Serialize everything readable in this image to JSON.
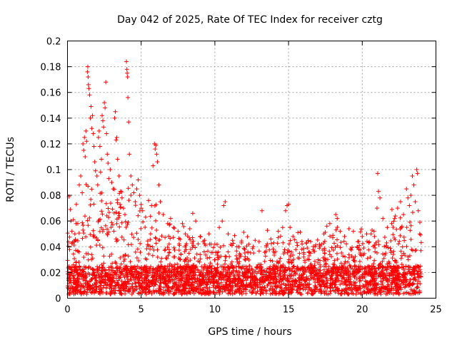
{
  "chart_data": {
    "type": "scatter",
    "title": "Day 042 of 2025, Rate Of TEC Index for receiver cztg",
    "xlabel": "GPS time / hours",
    "ylabel": "ROTI / TECUs",
    "xlim": [
      0,
      25
    ],
    "ylim": [
      0,
      0.2
    ],
    "xticks": [
      0,
      5,
      10,
      15,
      20,
      25
    ],
    "yticks": [
      0,
      0.02,
      0.04,
      0.06,
      0.08,
      0.1,
      0.12,
      0.14,
      0.16,
      0.18,
      0.2
    ],
    "xtick_labels": [
      "0",
      "5",
      "10",
      "15",
      "20",
      "25"
    ],
    "ytick_labels": [
      "0",
      "0.02",
      "0.04",
      "0.06",
      "0.08",
      "0.1",
      "0.12",
      "0.14",
      "0.16",
      "0.18",
      "0.2"
    ],
    "grid": true,
    "marker": "plus",
    "series": [
      {
        "name": "ROTI",
        "color": "#ff0000",
        "points": [
          [
            0.1,
            0.079
          ],
          [
            0.2,
            0.069
          ],
          [
            0.3,
            0.052
          ],
          [
            0.4,
            0.061
          ],
          [
            0.5,
            0.05
          ],
          [
            0.6,
            0.073
          ],
          [
            0.7,
            0.058
          ],
          [
            0.8,
            0.088
          ],
          [
            0.9,
            0.095
          ],
          [
            1.0,
            0.082
          ],
          [
            1.05,
            0.12
          ],
          [
            1.1,
            0.115
          ],
          [
            1.15,
            0.125
          ],
          [
            1.2,
            0.11
          ],
          [
            1.25,
            0.13
          ],
          [
            1.3,
            0.122
          ],
          [
            1.35,
            0.176
          ],
          [
            1.38,
            0.18
          ],
          [
            1.4,
            0.172
          ],
          [
            1.42,
            0.166
          ],
          [
            1.45,
            0.163
          ],
          [
            1.5,
            0.158
          ],
          [
            1.55,
            0.14
          ],
          [
            1.6,
            0.149
          ],
          [
            1.65,
            0.132
          ],
          [
            1.7,
            0.142
          ],
          [
            1.75,
            0.128
          ],
          [
            1.8,
            0.118
          ],
          [
            1.85,
            0.106
          ],
          [
            1.9,
            0.099
          ],
          [
            2.0,
            0.095
          ],
          [
            2.05,
            0.088
          ],
          [
            2.1,
            0.125
          ],
          [
            2.15,
            0.13
          ],
          [
            2.2,
            0.118
          ],
          [
            2.25,
            0.098
          ],
          [
            2.3,
            0.108
          ],
          [
            2.35,
            0.142
          ],
          [
            2.4,
            0.138
          ],
          [
            2.45,
            0.133
          ],
          [
            2.5,
            0.152
          ],
          [
            2.55,
            0.148
          ],
          [
            2.6,
            0.168
          ],
          [
            2.65,
            0.128
          ],
          [
            2.7,
            0.112
          ],
          [
            2.75,
            0.105
          ],
          [
            2.8,
            0.093
          ],
          [
            2.9,
            0.1
          ],
          [
            3.0,
            0.09
          ],
          [
            3.1,
            0.085
          ],
          [
            3.2,
            0.14
          ],
          [
            3.25,
            0.145
          ],
          [
            3.3,
            0.123
          ],
          [
            3.35,
            0.125
          ],
          [
            3.4,
            0.108
          ],
          [
            3.5,
            0.095
          ],
          [
            3.6,
            0.083
          ],
          [
            3.7,
            0.078
          ],
          [
            3.8,
            0.07
          ],
          [
            3.9,
            0.065
          ],
          [
            4.0,
            0.184
          ],
          [
            4.03,
            0.178
          ],
          [
            4.05,
            0.175
          ],
          [
            4.08,
            0.172
          ],
          [
            4.1,
            0.156
          ],
          [
            4.15,
            0.137
          ],
          [
            4.2,
            0.112
          ],
          [
            4.3,
            0.095
          ],
          [
            4.4,
            0.088
          ],
          [
            4.5,
            0.082
          ],
          [
            4.6,
            0.075
          ],
          [
            4.7,
            0.085
          ],
          [
            4.8,
            0.092
          ],
          [
            4.9,
            0.08
          ],
          [
            5.0,
            0.07
          ],
          [
            5.1,
            0.068
          ],
          [
            5.3,
            0.063
          ],
          [
            5.5,
            0.076
          ],
          [
            5.7,
            0.072
          ],
          [
            5.8,
            0.103
          ],
          [
            5.9,
            0.12
          ],
          [
            5.95,
            0.116
          ],
          [
            6.0,
            0.119
          ],
          [
            6.05,
            0.112
          ],
          [
            6.1,
            0.106
          ],
          [
            6.2,
            0.088
          ],
          [
            6.3,
            0.075
          ],
          [
            6.5,
            0.065
          ],
          [
            6.8,
            0.058
          ],
          [
            7.0,
            0.062
          ],
          [
            7.2,
            0.055
          ],
          [
            7.5,
            0.052
          ],
          [
            7.8,
            0.058
          ],
          [
            8.0,
            0.05
          ],
          [
            8.3,
            0.054
          ],
          [
            8.5,
            0.066
          ],
          [
            8.7,
            0.06
          ],
          [
            9.0,
            0.048
          ],
          [
            9.3,
            0.045
          ],
          [
            9.6,
            0.05
          ],
          [
            10.0,
            0.042
          ],
          [
            10.3,
            0.055
          ],
          [
            10.5,
            0.06
          ],
          [
            10.6,
            0.072
          ],
          [
            10.7,
            0.075
          ],
          [
            10.9,
            0.05
          ],
          [
            11.2,
            0.045
          ],
          [
            11.5,
            0.04
          ],
          [
            11.8,
            0.043
          ],
          [
            12.0,
            0.038
          ],
          [
            12.3,
            0.042
          ],
          [
            12.6,
            0.04
          ],
          [
            13.0,
            0.044
          ],
          [
            13.2,
            0.068
          ],
          [
            13.5,
            0.041
          ],
          [
            13.8,
            0.046
          ],
          [
            14.0,
            0.043
          ],
          [
            14.3,
            0.047
          ],
          [
            14.6,
            0.055
          ],
          [
            14.8,
            0.068
          ],
          [
            14.9,
            0.072
          ],
          [
            15.0,
            0.073
          ],
          [
            15.1,
            0.055
          ],
          [
            15.3,
            0.048
          ],
          [
            15.6,
            0.041
          ],
          [
            15.9,
            0.038
          ],
          [
            16.2,
            0.043
          ],
          [
            16.5,
            0.044
          ],
          [
            16.8,
            0.04
          ],
          [
            17.1,
            0.042
          ],
          [
            17.4,
            0.05
          ],
          [
            17.6,
            0.056
          ],
          [
            17.8,
            0.058
          ],
          [
            18.0,
            0.047
          ],
          [
            18.2,
            0.065
          ],
          [
            18.3,
            0.062
          ],
          [
            18.5,
            0.052
          ],
          [
            18.8,
            0.048
          ],
          [
            19.1,
            0.054
          ],
          [
            19.4,
            0.052
          ],
          [
            19.7,
            0.044
          ],
          [
            20.0,
            0.048
          ],
          [
            20.3,
            0.05
          ],
          [
            20.6,
            0.05
          ],
          [
            20.8,
            0.052
          ],
          [
            21.0,
            0.07
          ],
          [
            21.05,
            0.097
          ],
          [
            21.1,
            0.083
          ],
          [
            21.2,
            0.078
          ],
          [
            21.4,
            0.062
          ],
          [
            21.7,
            0.055
          ],
          [
            22.0,
            0.058
          ],
          [
            22.2,
            0.062
          ],
          [
            22.4,
            0.07
          ],
          [
            22.6,
            0.075
          ],
          [
            22.8,
            0.065
          ],
          [
            23.0,
            0.085
          ],
          [
            23.1,
            0.078
          ],
          [
            23.2,
            0.072
          ],
          [
            23.3,
            0.08
          ],
          [
            23.4,
            0.095
          ],
          [
            23.5,
            0.088
          ],
          [
            23.6,
            0.075
          ],
          [
            23.7,
            0.1
          ],
          [
            23.75,
            0.097
          ],
          [
            23.8,
            0.068
          ],
          [
            23.9,
            0.05
          ]
        ]
      }
    ]
  }
}
